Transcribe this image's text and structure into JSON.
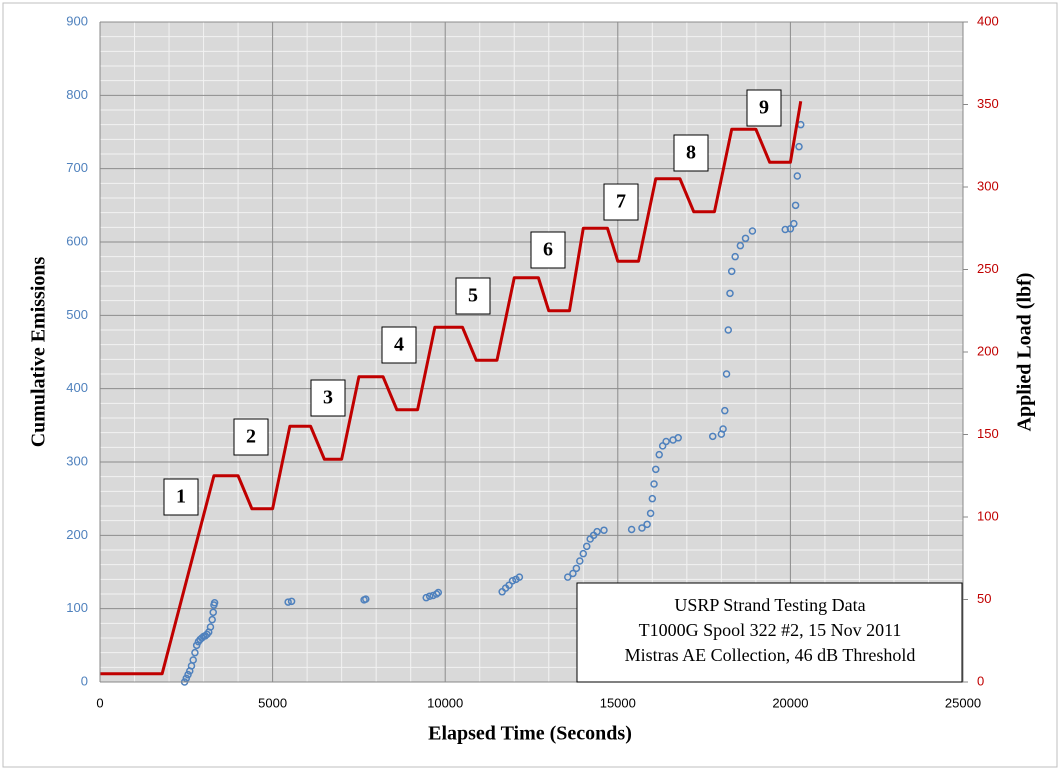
{
  "chart_data": {
    "type": "scatter",
    "xlabel": "Elapsed Time (Seconds)",
    "ylabel": "Cumulative Emissions",
    "y2label": "Applied Load (lbf)",
    "xlim": [
      0,
      25000
    ],
    "xticks": [
      0,
      5000,
      10000,
      15000,
      20000,
      25000
    ],
    "ylim": [
      0,
      900
    ],
    "yticks": [
      0,
      100,
      200,
      300,
      400,
      500,
      600,
      700,
      800,
      900
    ],
    "y2lim": [
      0,
      400
    ],
    "y2ticks": [
      0,
      50,
      100,
      150,
      200,
      250,
      300,
      350,
      400
    ],
    "grid": true,
    "ycolor": "#4f81bd",
    "y2color": "#c00000",
    "series": [
      {
        "type": "scatter",
        "color": "#4f81bd",
        "x": [
          2450,
          2500,
          2550,
          2600,
          2650,
          2700,
          2750,
          2800,
          2850,
          2900,
          2950,
          3000,
          3050,
          3100,
          3150,
          3200,
          3250,
          3280,
          3300,
          3320,
          5450,
          5550,
          7650,
          7700,
          9450,
          9550,
          9650,
          9750,
          9800,
          11650,
          11750,
          11850,
          11950,
          12050,
          12150,
          13550,
          13700,
          13800,
          13900,
          14000,
          14100,
          14200,
          14300,
          14400,
          14600,
          15400,
          15700,
          15850,
          15950,
          16000,
          16050,
          16100,
          16200,
          16300,
          16400,
          16600,
          16750,
          17750,
          18000,
          18050,
          18100,
          18150,
          18200,
          18250,
          18300,
          18400,
          18550,
          18700,
          18900,
          19850,
          20000,
          20100,
          20150,
          20200,
          20250,
          20300
        ],
        "values": [
          0,
          5,
          10,
          15,
          22,
          30,
          40,
          50,
          55,
          58,
          60,
          62,
          63,
          65,
          68,
          75,
          85,
          95,
          105,
          108,
          109,
          110,
          112,
          113,
          115,
          117,
          118,
          120,
          122,
          123,
          128,
          132,
          138,
          140,
          143,
          143,
          148,
          155,
          165,
          175,
          185,
          195,
          200,
          205,
          207,
          208,
          210,
          215,
          230,
          250,
          270,
          290,
          310,
          322,
          328,
          330,
          333,
          335,
          338,
          345,
          370,
          420,
          480,
          530,
          560,
          580,
          595,
          605,
          615,
          617,
          618,
          625,
          650,
          690,
          730,
          760
        ]
      },
      {
        "type": "line",
        "axis": "y2",
        "color": "#c00000",
        "x": [
          0,
          1800,
          3300,
          4000,
          4400,
          5000,
          5500,
          6100,
          6500,
          7000,
          7500,
          8200,
          8600,
          9200,
          9700,
          10500,
          10900,
          11500,
          12000,
          12700,
          13000,
          13600,
          14000,
          14700,
          15000,
          15600,
          16100,
          16800,
          17200,
          17800,
          18300,
          19000,
          19400,
          20000,
          20300
        ],
        "values": [
          5,
          5,
          125,
          125,
          105,
          105,
          155,
          155,
          135,
          135,
          185,
          185,
          165,
          165,
          215,
          215,
          195,
          195,
          245,
          245,
          225,
          225,
          275,
          275,
          255,
          255,
          305,
          305,
          285,
          285,
          335,
          335,
          315,
          315,
          352
        ]
      }
    ],
    "annotations": [
      "1",
      "2",
      "3",
      "4",
      "5",
      "6",
      "7",
      "8",
      "9"
    ],
    "note": [
      "USRP Strand Testing Data",
      "T1000G Spool 322 #2, 15 Nov 2011",
      "Mistras AE Collection, 46 dB Threshold"
    ]
  }
}
